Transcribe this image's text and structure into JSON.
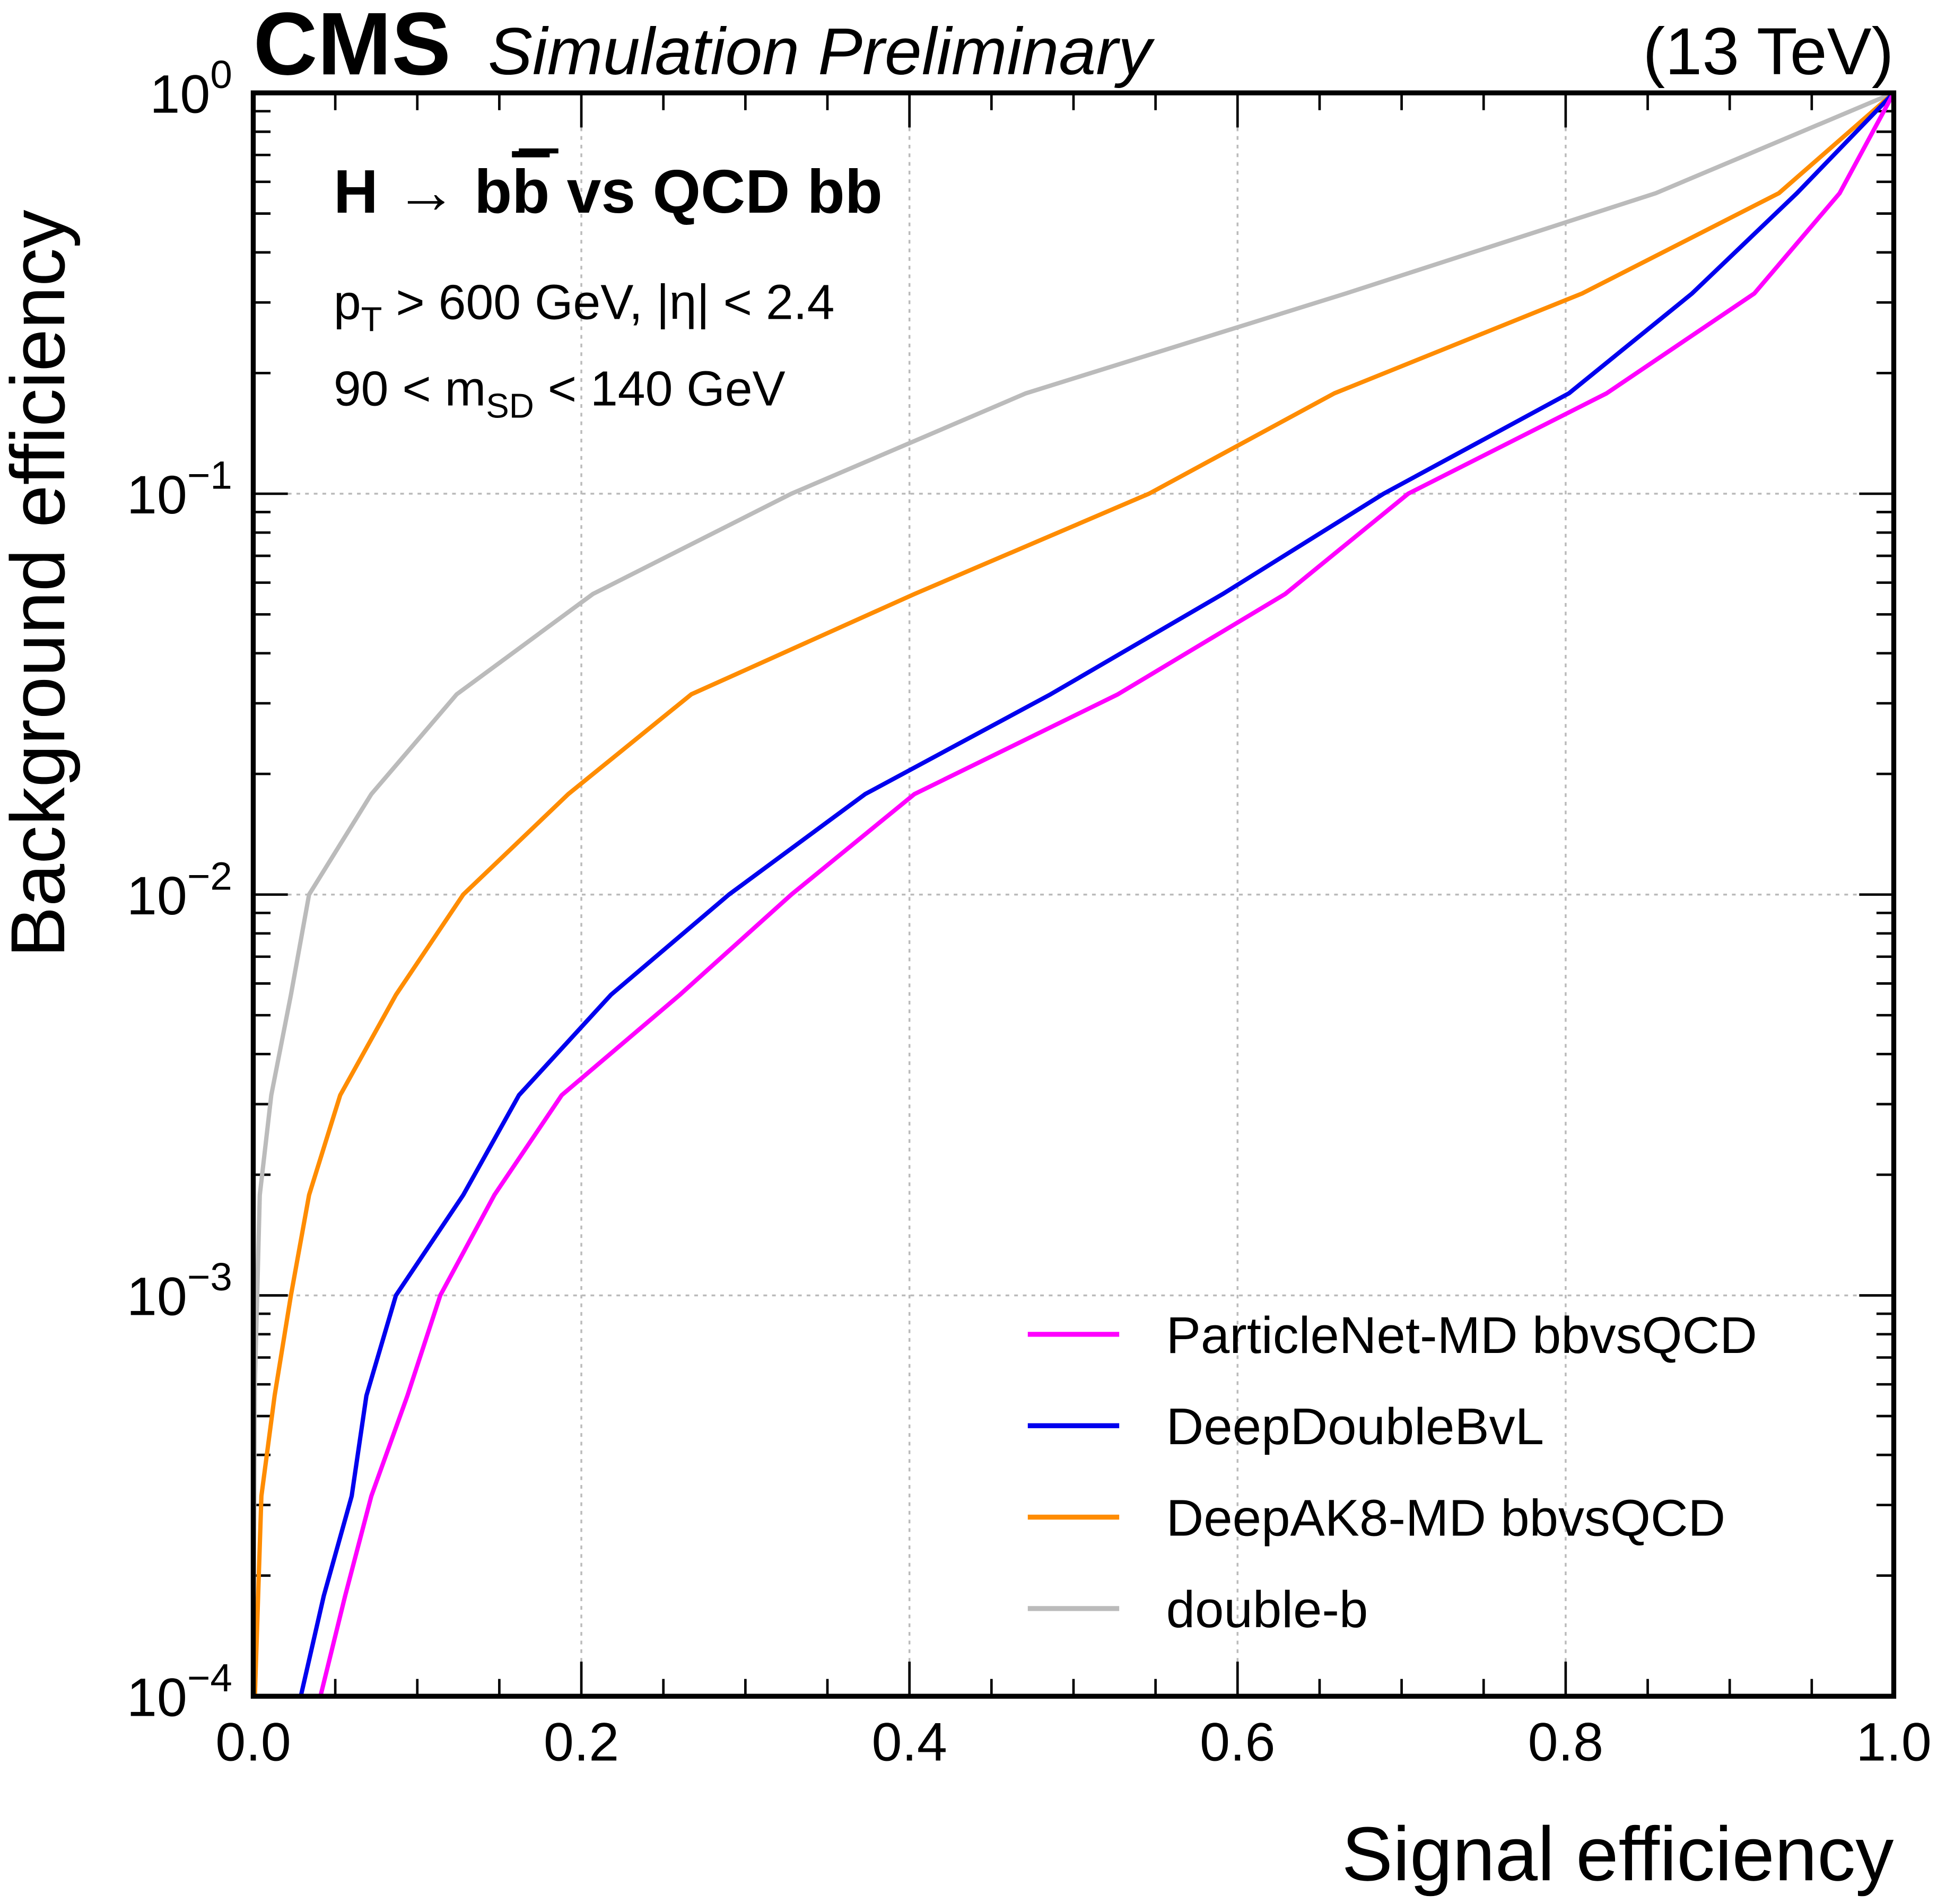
{
  "header": {
    "experiment": "CMS",
    "status": "Simulation Preliminary",
    "energy": "(13 TeV)"
  },
  "annotations": {
    "process_main": "H → b",
    "process_bbar": "b",
    "process_rest": " vs QCD bb",
    "pt_prefix": "p",
    "pt_sub": "T",
    "pt_rest": " > 600 GeV,   |η| < 2.4",
    "msd_prefix": "90 < m",
    "msd_sub": "SD",
    "msd_rest": " < 140 GeV"
  },
  "chart_data": {
    "type": "line",
    "title": "",
    "xlabel": "Signal efficiency",
    "ylabel": "Background efficiency",
    "xlim": [
      0,
      1
    ],
    "ylim": [
      0.0001,
      1
    ],
    "yscale": "log",
    "grid": true,
    "legend_position": "bottom-right",
    "x_ticks": [
      "0.0",
      "0.2",
      "0.4",
      "0.6",
      "0.8",
      "1.0"
    ],
    "y_ticks": [
      {
        "base": "10",
        "exp": "0"
      },
      {
        "base": "10",
        "exp": "−1"
      },
      {
        "base": "10",
        "exp": "−2"
      },
      {
        "base": "10",
        "exp": "−3"
      },
      {
        "base": "10",
        "exp": "−4"
      }
    ],
    "series": [
      {
        "name": "ParticleNet-MD bbvsQCD",
        "color": "#ff00ff",
        "points": [
          [
            0.041,
            0.0001
          ],
          [
            0.056,
            0.000178
          ],
          [
            0.072,
            0.000316
          ],
          [
            0.094,
            0.000562
          ],
          [
            0.114,
            0.001
          ],
          [
            0.147,
            0.00178
          ],
          [
            0.188,
            0.00316
          ],
          [
            0.26,
            0.00562
          ],
          [
            0.328,
            0.01
          ],
          [
            0.403,
            0.0178
          ],
          [
            0.527,
            0.0316
          ],
          [
            0.629,
            0.0562
          ],
          [
            0.704,
            0.1
          ],
          [
            0.825,
            0.178
          ],
          [
            0.915,
            0.316
          ],
          [
            0.967,
            0.562
          ],
          [
            1.0,
            1.0
          ]
        ]
      },
      {
        "name": "DeepDoubleBvL",
        "color": "#0000ee",
        "points": [
          [
            0.029,
            0.0001
          ],
          [
            0.043,
            0.000178
          ],
          [
            0.06,
            0.000316
          ],
          [
            0.069,
            0.000562
          ],
          [
            0.087,
            0.001
          ],
          [
            0.128,
            0.00178
          ],
          [
            0.162,
            0.00316
          ],
          [
            0.218,
            0.00562
          ],
          [
            0.29,
            0.01
          ],
          [
            0.373,
            0.0178
          ],
          [
            0.486,
            0.0316
          ],
          [
            0.591,
            0.0562
          ],
          [
            0.689,
            0.1
          ],
          [
            0.802,
            0.178
          ],
          [
            0.877,
            0.316
          ],
          [
            0.941,
            0.562
          ],
          [
            1.0,
            1.0
          ]
        ]
      },
      {
        "name": "DeepAK8-MD bbvsQCD",
        "color": "#ff8c00",
        "points": [
          [
            0.001,
            0.0001
          ],
          [
            0.005,
            0.000316
          ],
          [
            0.013,
            0.000562
          ],
          [
            0.023,
            0.001
          ],
          [
            0.034,
            0.00178
          ],
          [
            0.053,
            0.00316
          ],
          [
            0.087,
            0.00562
          ],
          [
            0.128,
            0.01
          ],
          [
            0.192,
            0.0178
          ],
          [
            0.267,
            0.0316
          ],
          [
            0.403,
            0.0562
          ],
          [
            0.546,
            0.1
          ],
          [
            0.659,
            0.178
          ],
          [
            0.81,
            0.316
          ],
          [
            0.93,
            0.562
          ],
          [
            1.0,
            1.0
          ]
        ]
      },
      {
        "name": "double-b",
        "color": "#bbbbbb",
        "points": [
          [
            0.0,
            0.0001
          ],
          [
            0.001,
            0.0006
          ],
          [
            0.004,
            0.00178
          ],
          [
            0.011,
            0.00316
          ],
          [
            0.023,
            0.00562
          ],
          [
            0.034,
            0.01
          ],
          [
            0.072,
            0.0178
          ],
          [
            0.124,
            0.0316
          ],
          [
            0.207,
            0.0562
          ],
          [
            0.328,
            0.1
          ],
          [
            0.471,
            0.178
          ],
          [
            0.666,
            0.316
          ],
          [
            0.855,
            0.562
          ],
          [
            1.0,
            1.0
          ]
        ]
      }
    ]
  }
}
